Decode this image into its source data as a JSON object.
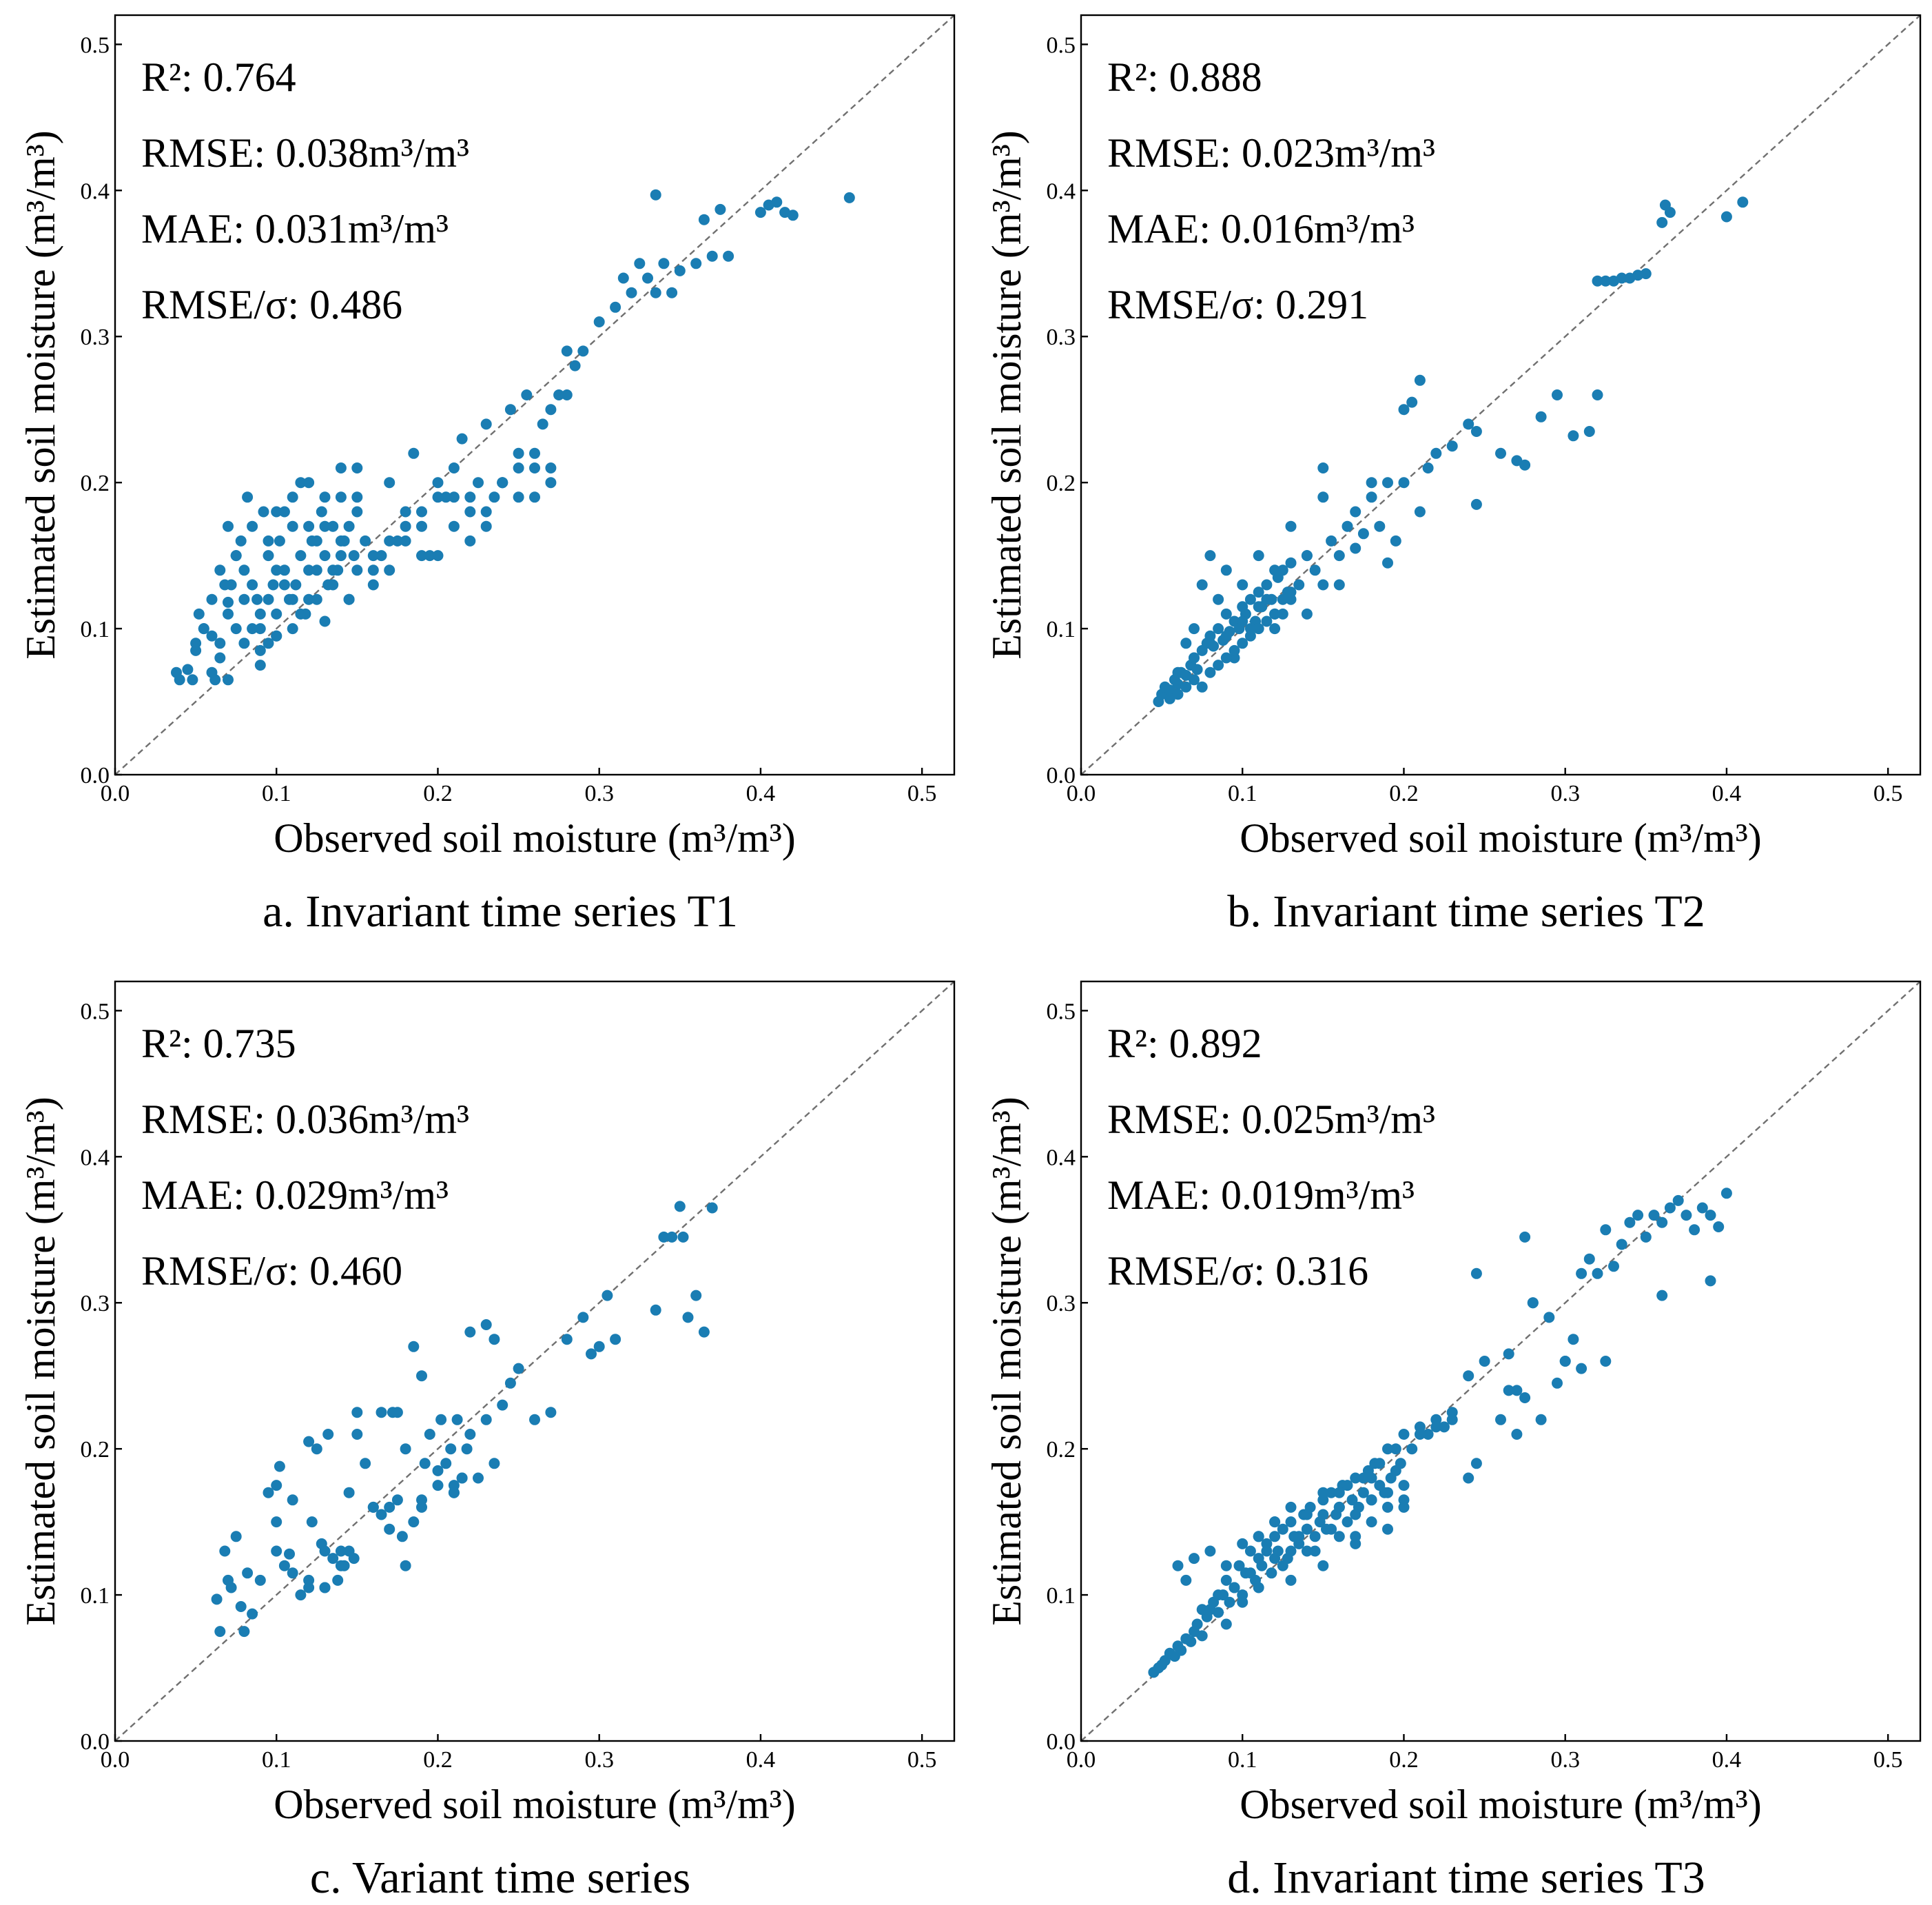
{
  "colors": {
    "point": "#1a7db3",
    "diagonal": "#707070",
    "axis": "#000000"
  },
  "chart_data": [
    {
      "type": "scatter",
      "caption": "a. Invariant time series T1",
      "xlabel": "Observed soil moisture (m³/m³)",
      "ylabel": "Estimated soil moisture (m³/m³)",
      "xlim": [
        0,
        0.52
      ],
      "ylim": [
        0,
        0.52
      ],
      "xticks": [
        "0.0",
        "0.1",
        "0.2",
        "0.3",
        "0.4",
        "0.5"
      ],
      "yticks": [
        "0.0",
        "0.1",
        "0.2",
        "0.3",
        "0.4",
        "0.5"
      ],
      "reference_line": "1:1",
      "stats": [
        "R²: 0.764",
        "RMSE: 0.038m³/m³",
        "MAE: 0.031m³/m³",
        "RMSE/σ: 0.486"
      ],
      "x": [
        0.038,
        0.04,
        0.045,
        0.048,
        0.05,
        0.052,
        0.055,
        0.06,
        0.062,
        0.065,
        0.068,
        0.07,
        0.05,
        0.055,
        0.06,
        0.065,
        0.07,
        0.072,
        0.075,
        0.078,
        0.08,
        0.082,
        0.085,
        0.088,
        0.09,
        0.092,
        0.095,
        0.098,
        0.1,
        0.102,
        0.105,
        0.108,
        0.11,
        0.112,
        0.115,
        0.118,
        0.12,
        0.122,
        0.125,
        0.128,
        0.13,
        0.132,
        0.135,
        0.138,
        0.14,
        0.142,
        0.145,
        0.148,
        0.15,
        0.08,
        0.085,
        0.09,
        0.095,
        0.1,
        0.105,
        0.11,
        0.115,
        0.12,
        0.125,
        0.13,
        0.135,
        0.14,
        0.145,
        0.15,
        0.155,
        0.16,
        0.165,
        0.17,
        0.175,
        0.18,
        0.185,
        0.19,
        0.195,
        0.2,
        0.205,
        0.21,
        0.215,
        0.22,
        0.225,
        0.23,
        0.235,
        0.24,
        0.245,
        0.25,
        0.255,
        0.26,
        0.265,
        0.27,
        0.275,
        0.28,
        0.285,
        0.29,
        0.3,
        0.31,
        0.315,
        0.32,
        0.325,
        0.33,
        0.335,
        0.34,
        0.345,
        0.35,
        0.36,
        0.365,
        0.37,
        0.375,
        0.38,
        0.4,
        0.405,
        0.41,
        0.415,
        0.42,
        0.455,
        0.335,
        0.07,
        0.075,
        0.08,
        0.085,
        0.09,
        0.095,
        0.1,
        0.105,
        0.11,
        0.115,
        0.12,
        0.125,
        0.13,
        0.135,
        0.14,
        0.145,
        0.15,
        0.16,
        0.17,
        0.18,
        0.19,
        0.2,
        0.21,
        0.22,
        0.23,
        0.24,
        0.25,
        0.26,
        0.27,
        0.16,
        0.17,
        0.18,
        0.19,
        0.2,
        0.21,
        0.22,
        0.23,
        0.24,
        0.25,
        0.26,
        0.27,
        0.28,
        0.1,
        0.11,
        0.12,
        0.13,
        0.14,
        0.15,
        0.06,
        0.065,
        0.07,
        0.075,
        0.09,
        0.095,
        0.1
      ],
      "y": [
        0.07,
        0.065,
        0.072,
        0.065,
        0.09,
        0.11,
        0.1,
        0.095,
        0.065,
        0.14,
        0.13,
        0.118,
        0.085,
        0.1,
        0.12,
        0.08,
        0.11,
        0.13,
        0.15,
        0.16,
        0.14,
        0.19,
        0.17,
        0.12,
        0.1,
        0.18,
        0.15,
        0.13,
        0.11,
        0.16,
        0.14,
        0.12,
        0.17,
        0.13,
        0.15,
        0.11,
        0.14,
        0.16,
        0.12,
        0.18,
        0.15,
        0.13,
        0.17,
        0.14,
        0.19,
        0.16,
        0.12,
        0.15,
        0.18,
        0.09,
        0.1,
        0.085,
        0.12,
        0.095,
        0.13,
        0.1,
        0.11,
        0.12,
        0.14,
        0.105,
        0.13,
        0.15,
        0.12,
        0.14,
        0.16,
        0.13,
        0.15,
        0.2,
        0.16,
        0.17,
        0.22,
        0.18,
        0.15,
        0.2,
        0.19,
        0.17,
        0.23,
        0.18,
        0.2,
        0.24,
        0.19,
        0.2,
        0.25,
        0.21,
        0.26,
        0.22,
        0.24,
        0.25,
        0.26,
        0.29,
        0.28,
        0.29,
        0.31,
        0.32,
        0.34,
        0.33,
        0.35,
        0.34,
        0.33,
        0.35,
        0.33,
        0.345,
        0.35,
        0.38,
        0.355,
        0.387,
        0.355,
        0.385,
        0.39,
        0.392,
        0.385,
        0.383,
        0.395,
        0.397,
        0.17,
        0.15,
        0.12,
        0.13,
        0.11,
        0.16,
        0.14,
        0.18,
        0.12,
        0.2,
        0.17,
        0.16,
        0.19,
        0.14,
        0.21,
        0.17,
        0.19,
        0.14,
        0.16,
        0.18,
        0.15,
        0.19,
        0.21,
        0.19,
        0.17,
        0.2,
        0.22,
        0.19,
        0.21,
        0.15,
        0.14,
        0.16,
        0.17,
        0.15,
        0.19,
        0.16,
        0.18,
        0.2,
        0.19,
        0.21,
        0.2,
        0.26,
        0.18,
        0.19,
        0.2,
        0.17,
        0.16,
        0.21,
        0.07,
        0.09,
        0.065,
        0.1,
        0.075,
        0.09,
        0.095
      ]
    },
    {
      "type": "scatter",
      "caption": "b. Invariant time series T2",
      "xlabel": "Observed soil moisture (m³/m³)",
      "ylabel": "Estimated soil moisture (m³/m³)",
      "xlim": [
        0,
        0.52
      ],
      "ylim": [
        0,
        0.52
      ],
      "xticks": [
        "0.0",
        "0.1",
        "0.2",
        "0.3",
        "0.4",
        "0.5"
      ],
      "yticks": [
        "0.0",
        "0.1",
        "0.2",
        "0.3",
        "0.4",
        "0.5"
      ],
      "reference_line": "1:1",
      "stats": [
        "R²: 0.888",
        "RMSE: 0.023m³/m³",
        "MAE: 0.016m³/m³",
        "RMSE/σ: 0.291"
      ],
      "x": [
        0.048,
        0.05,
        0.052,
        0.055,
        0.058,
        0.06,
        0.062,
        0.065,
        0.068,
        0.07,
        0.072,
        0.075,
        0.078,
        0.08,
        0.082,
        0.085,
        0.088,
        0.09,
        0.092,
        0.095,
        0.098,
        0.1,
        0.102,
        0.105,
        0.108,
        0.11,
        0.112,
        0.115,
        0.118,
        0.12,
        0.122,
        0.125,
        0.128,
        0.13,
        0.135,
        0.14,
        0.145,
        0.15,
        0.155,
        0.16,
        0.165,
        0.17,
        0.175,
        0.18,
        0.185,
        0.19,
        0.195,
        0.2,
        0.205,
        0.21,
        0.215,
        0.22,
        0.23,
        0.24,
        0.065,
        0.07,
        0.075,
        0.08,
        0.085,
        0.09,
        0.095,
        0.1,
        0.105,
        0.11,
        0.115,
        0.12,
        0.125,
        0.13,
        0.14,
        0.15,
        0.16,
        0.17,
        0.18,
        0.19,
        0.2,
        0.21,
        0.245,
        0.26,
        0.27,
        0.285,
        0.295,
        0.305,
        0.315,
        0.32,
        0.32,
        0.325,
        0.33,
        0.335,
        0.34,
        0.345,
        0.35,
        0.36,
        0.362,
        0.365,
        0.4,
        0.41,
        0.12,
        0.13,
        0.14,
        0.15,
        0.06,
        0.07,
        0.08,
        0.09,
        0.1,
        0.11,
        0.055,
        0.06,
        0.065,
        0.07,
        0.075,
        0.08,
        0.085,
        0.09,
        0.095,
        0.1,
        0.105,
        0.11,
        0.115,
        0.12,
        0.125,
        0.13,
        0.275,
        0.245
      ],
      "y": [
        0.05,
        0.055,
        0.06,
        0.058,
        0.065,
        0.062,
        0.07,
        0.068,
        0.075,
        0.08,
        0.072,
        0.085,
        0.09,
        0.095,
        0.088,
        0.1,
        0.092,
        0.11,
        0.098,
        0.105,
        0.1,
        0.115,
        0.11,
        0.12,
        0.105,
        0.125,
        0.115,
        0.13,
        0.12,
        0.11,
        0.135,
        0.14,
        0.125,
        0.145,
        0.13,
        0.15,
        0.14,
        0.21,
        0.16,
        0.15,
        0.17,
        0.18,
        0.165,
        0.19,
        0.17,
        0.2,
        0.16,
        0.2,
        0.255,
        0.18,
        0.21,
        0.22,
        0.225,
        0.24,
        0.09,
        0.1,
        0.13,
        0.15,
        0.12,
        0.14,
        0.08,
        0.13,
        0.1,
        0.15,
        0.12,
        0.14,
        0.11,
        0.17,
        0.15,
        0.19,
        0.13,
        0.155,
        0.2,
        0.145,
        0.25,
        0.27,
        0.185,
        0.22,
        0.215,
        0.245,
        0.26,
        0.232,
        0.235,
        0.26,
        0.338,
        0.338,
        0.338,
        0.34,
        0.34,
        0.342,
        0.343,
        0.378,
        0.39,
        0.385,
        0.382,
        0.392,
        0.1,
        0.12,
        0.11,
        0.13,
        0.07,
        0.08,
        0.09,
        0.095,
        0.105,
        0.115,
        0.052,
        0.055,
        0.06,
        0.065,
        0.06,
        0.07,
        0.075,
        0.08,
        0.085,
        0.09,
        0.095,
        0.1,
        0.105,
        0.11,
        0.12,
        0.125,
        0.212,
        0.235
      ]
    },
    {
      "type": "scatter",
      "caption": "c. Variant time series",
      "xlabel": "Observed soil moisture (m³/m³)",
      "ylabel": "Estimated soil moisture (m³/m³)",
      "xlim": [
        0,
        0.52
      ],
      "ylim": [
        0,
        0.52
      ],
      "xticks": [
        "0.0",
        "0.1",
        "0.2",
        "0.3",
        "0.4",
        "0.5"
      ],
      "yticks": [
        "0.0",
        "0.1",
        "0.2",
        "0.3",
        "0.4",
        "0.5"
      ],
      "reference_line": "1:1",
      "stats": [
        "R²: 0.735",
        "RMSE: 0.036m³/m³",
        "MAE: 0.029m³/m³",
        "RMSE/σ: 0.460"
      ],
      "x": [
        0.063,
        0.065,
        0.068,
        0.07,
        0.072,
        0.075,
        0.078,
        0.08,
        0.082,
        0.085,
        0.095,
        0.1,
        0.102,
        0.105,
        0.108,
        0.11,
        0.115,
        0.12,
        0.122,
        0.125,
        0.128,
        0.13,
        0.132,
        0.135,
        0.138,
        0.14,
        0.142,
        0.145,
        0.148,
        0.15,
        0.155,
        0.16,
        0.165,
        0.17,
        0.172,
        0.175,
        0.178,
        0.18,
        0.185,
        0.19,
        0.192,
        0.195,
        0.2,
        0.202,
        0.205,
        0.208,
        0.21,
        0.212,
        0.215,
        0.218,
        0.22,
        0.225,
        0.23,
        0.235,
        0.24,
        0.245,
        0.25,
        0.26,
        0.27,
        0.28,
        0.29,
        0.295,
        0.3,
        0.305,
        0.31,
        0.335,
        0.34,
        0.345,
        0.35,
        0.352,
        0.355,
        0.36,
        0.365,
        0.37,
        0.1,
        0.11,
        0.12,
        0.13,
        0.14,
        0.17,
        0.18,
        0.19,
        0.2,
        0.21,
        0.22,
        0.23,
        0.185,
        0.19,
        0.21,
        0.215,
        0.235,
        0.15,
        0.16,
        0.165,
        0.175,
        0.09,
        0.1,
        0.12,
        0.13,
        0.145
      ],
      "y": [
        0.097,
        0.075,
        0.13,
        0.11,
        0.105,
        0.14,
        0.092,
        0.075,
        0.115,
        0.087,
        0.17,
        0.15,
        0.188,
        0.12,
        0.128,
        0.165,
        0.1,
        0.11,
        0.15,
        0.2,
        0.135,
        0.105,
        0.21,
        0.125,
        0.11,
        0.13,
        0.12,
        0.17,
        0.125,
        0.21,
        0.19,
        0.16,
        0.225,
        0.16,
        0.225,
        0.165,
        0.14,
        0.2,
        0.15,
        0.25,
        0.19,
        0.21,
        0.175,
        0.22,
        0.19,
        0.2,
        0.17,
        0.22,
        0.18,
        0.2,
        0.21,
        0.18,
        0.22,
        0.275,
        0.23,
        0.245,
        0.255,
        0.22,
        0.225,
        0.275,
        0.29,
        0.265,
        0.27,
        0.305,
        0.275,
        0.295,
        0.345,
        0.345,
        0.366,
        0.345,
        0.29,
        0.305,
        0.28,
        0.365,
        0.175,
        0.115,
        0.105,
        0.13,
        0.12,
        0.145,
        0.12,
        0.165,
        0.185,
        0.175,
        0.28,
        0.285,
        0.27,
        0.16,
        0.17,
        0.18,
        0.19,
        0.225,
        0.16,
        0.155,
        0.225,
        0.11,
        0.13,
        0.205,
        0.105,
        0.13
      ]
    },
    {
      "type": "scatter",
      "caption": "d. Invariant time series T3",
      "xlabel": "Observed soil moisture (m³/m³)",
      "ylabel": "Estimated soil moisture (m³/m³)",
      "xlim": [
        0,
        0.52
      ],
      "ylim": [
        0,
        0.52
      ],
      "xticks": [
        "0.0",
        "0.1",
        "0.2",
        "0.3",
        "0.4",
        "0.5"
      ],
      "yticks": [
        "0.0",
        "0.1",
        "0.2",
        "0.3",
        "0.4",
        "0.5"
      ],
      "reference_line": "1:1",
      "stats": [
        "R²: 0.892",
        "RMSE: 0.025m³/m³",
        "MAE: 0.019m³/m³",
        "RMSE/σ: 0.316"
      ],
      "x": [
        0.045,
        0.048,
        0.05,
        0.052,
        0.055,
        0.058,
        0.06,
        0.062,
        0.065,
        0.068,
        0.07,
        0.072,
        0.075,
        0.078,
        0.08,
        0.082,
        0.085,
        0.088,
        0.09,
        0.092,
        0.095,
        0.098,
        0.1,
        0.102,
        0.105,
        0.108,
        0.11,
        0.112,
        0.115,
        0.118,
        0.12,
        0.122,
        0.125,
        0.128,
        0.13,
        0.132,
        0.135,
        0.138,
        0.14,
        0.142,
        0.145,
        0.148,
        0.15,
        0.152,
        0.155,
        0.158,
        0.16,
        0.162,
        0.165,
        0.168,
        0.17,
        0.172,
        0.175,
        0.178,
        0.18,
        0.182,
        0.185,
        0.188,
        0.19,
        0.192,
        0.195,
        0.198,
        0.2,
        0.205,
        0.21,
        0.215,
        0.22,
        0.225,
        0.23,
        0.24,
        0.245,
        0.25,
        0.26,
        0.265,
        0.27,
        0.275,
        0.28,
        0.285,
        0.29,
        0.295,
        0.3,
        0.305,
        0.31,
        0.315,
        0.32,
        0.325,
        0.33,
        0.335,
        0.34,
        0.345,
        0.35,
        0.355,
        0.36,
        0.365,
        0.37,
        0.375,
        0.38,
        0.385,
        0.39,
        0.395,
        0.4,
        0.39,
        0.36,
        0.325,
        0.31,
        0.3,
        0.27,
        0.265,
        0.245,
        0.28,
        0.275,
        0.06,
        0.065,
        0.07,
        0.075,
        0.08,
        0.085,
        0.09,
        0.095,
        0.1,
        0.105,
        0.11,
        0.115,
        0.12,
        0.125,
        0.13,
        0.135,
        0.14,
        0.145,
        0.15,
        0.155,
        0.16,
        0.165,
        0.17,
        0.175,
        0.18,
        0.185,
        0.19,
        0.195,
        0.2,
        0.09,
        0.1,
        0.11,
        0.12,
        0.13,
        0.14,
        0.15,
        0.16,
        0.17,
        0.18,
        0.19,
        0.2,
        0.11,
        0.12,
        0.13,
        0.14,
        0.15,
        0.16,
        0.17,
        0.18,
        0.19,
        0.2,
        0.21,
        0.22,
        0.23,
        0.24
      ],
      "y": [
        0.047,
        0.05,
        0.052,
        0.055,
        0.06,
        0.058,
        0.065,
        0.062,
        0.07,
        0.068,
        0.075,
        0.08,
        0.072,
        0.085,
        0.09,
        0.095,
        0.088,
        0.1,
        0.11,
        0.095,
        0.105,
        0.12,
        0.1,
        0.115,
        0.13,
        0.11,
        0.125,
        0.12,
        0.135,
        0.115,
        0.14,
        0.13,
        0.145,
        0.125,
        0.15,
        0.14,
        0.135,
        0.155,
        0.145,
        0.16,
        0.14,
        0.15,
        0.165,
        0.145,
        0.17,
        0.155,
        0.16,
        0.175,
        0.15,
        0.165,
        0.18,
        0.16,
        0.17,
        0.185,
        0.165,
        0.19,
        0.175,
        0.17,
        0.2,
        0.18,
        0.185,
        0.19,
        0.21,
        0.2,
        0.215,
        0.21,
        0.22,
        0.215,
        0.225,
        0.18,
        0.19,
        0.26,
        0.22,
        0.265,
        0.24,
        0.235,
        0.3,
        0.22,
        0.29,
        0.245,
        0.26,
        0.275,
        0.32,
        0.33,
        0.32,
        0.35,
        0.325,
        0.34,
        0.355,
        0.36,
        0.345,
        0.36,
        0.355,
        0.365,
        0.37,
        0.36,
        0.35,
        0.365,
        0.36,
        0.352,
        0.375,
        0.315,
        0.305,
        0.26,
        0.255,
        0.26,
        0.21,
        0.24,
        0.32,
        0.3,
        0.345,
        0.12,
        0.11,
        0.125,
        0.09,
        0.13,
        0.1,
        0.12,
        0.105,
        0.135,
        0.115,
        0.14,
        0.13,
        0.15,
        0.12,
        0.16,
        0.14,
        0.155,
        0.13,
        0.17,
        0.145,
        0.16,
        0.175,
        0.155,
        0.18,
        0.165,
        0.19,
        0.17,
        0.2,
        0.175,
        0.08,
        0.095,
        0.105,
        0.125,
        0.11,
        0.13,
        0.12,
        0.14,
        0.135,
        0.15,
        0.145,
        0.16,
        0.14,
        0.15,
        0.13,
        0.145,
        0.155,
        0.17,
        0.14,
        0.18,
        0.16,
        0.165,
        0.21,
        0.215,
        0.22,
        0.25
      ]
    }
  ]
}
